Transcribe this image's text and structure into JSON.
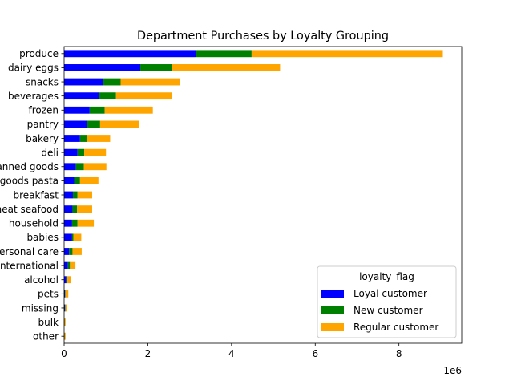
{
  "chart_data": {
    "type": "bar",
    "orientation": "horizontal",
    "stacked": true,
    "title": "Department Purchases by Loyalty Grouping",
    "xlabel": "",
    "ylabel": "",
    "x_offset_label": "1e6",
    "xlim": [
      0,
      9.5
    ],
    "x_ticks": [
      0,
      2,
      4,
      6,
      8
    ],
    "x_tick_labels": [
      "0",
      "2",
      "4",
      "6",
      "8"
    ],
    "grid": false,
    "legend": {
      "title": "loyalty_flag",
      "placement": "lower-right"
    },
    "categories": [
      "produce",
      "dairy eggs",
      "snacks",
      "beverages",
      "frozen",
      "pantry",
      "bakery",
      "deli",
      "canned goods",
      "dry goods pasta",
      "breakfast",
      "meat seafood",
      "household",
      "babies",
      "personal care",
      "international",
      "alcohol",
      "pets",
      "missing",
      "bulk",
      "other"
    ],
    "series": [
      {
        "name": "Loyal customer",
        "color": "#0000ff",
        "values": [
          3.15,
          1.82,
          0.93,
          0.84,
          0.61,
          0.55,
          0.38,
          0.32,
          0.28,
          0.24,
          0.21,
          0.2,
          0.19,
          0.19,
          0.12,
          0.09,
          0.05,
          0.02,
          0.02,
          0.01,
          0.01
        ]
      },
      {
        "name": "New customer",
        "color": "#008000",
        "values": [
          1.33,
          0.76,
          0.42,
          0.4,
          0.36,
          0.31,
          0.17,
          0.16,
          0.19,
          0.14,
          0.11,
          0.11,
          0.13,
          0.03,
          0.08,
          0.05,
          0.03,
          0.01,
          0.01,
          0.005,
          0.005
        ]
      },
      {
        "name": "Regular customer",
        "color": "#ffa500",
        "values": [
          4.57,
          2.58,
          1.42,
          1.33,
          1.15,
          0.93,
          0.55,
          0.52,
          0.54,
          0.44,
          0.35,
          0.36,
          0.39,
          0.19,
          0.22,
          0.13,
          0.09,
          0.07,
          0.03,
          0.02,
          0.02
        ]
      }
    ]
  }
}
